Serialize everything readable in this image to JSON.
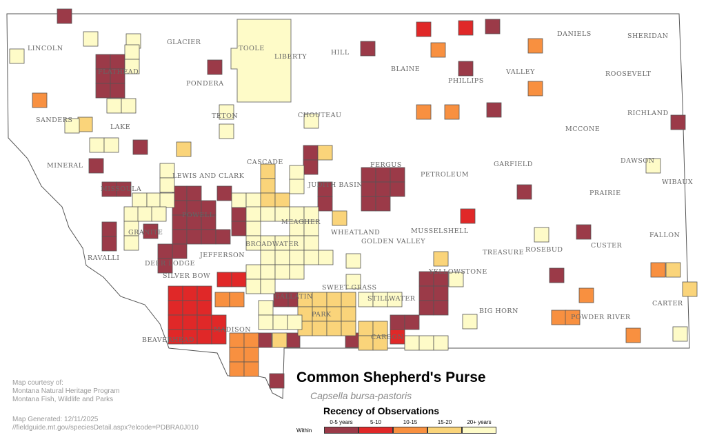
{
  "title": "Common Shepherd's Purse",
  "scientific_name": "Capsella bursa-pastoris",
  "legend": {
    "title": "Recency of Observations",
    "prefix": "Within",
    "categories": [
      {
        "label": "0-5 years",
        "color": "#9b3a48"
      },
      {
        "label": "5-10",
        "color": "#e02828"
      },
      {
        "label": "10-15",
        "color": "#f89040"
      },
      {
        "label": "15-20",
        "color": "#fad47a"
      },
      {
        "label": "20+ years",
        "color": "#fefbc8"
      }
    ]
  },
  "credits": {
    "line1": "Map courtesy of:",
    "line2": "Montana Natural Heritage Program",
    "line3": "Montana Fish, Wildlife and Parks",
    "generated": "Map Generated: 12/11/2025",
    "url": "//fieldguide.mt.gov/speciesDetail.aspx?elcode=PDBRA0J010"
  },
  "counties": [
    "LINCOLN",
    "FLATHEAD",
    "GLACIER",
    "TOOLE",
    "LIBERTY",
    "HILL",
    "BLAINE",
    "PHILLIPS",
    "VALLEY",
    "DANIELS",
    "SHERIDAN",
    "ROOSEVELT",
    "PONDERA",
    "TETON",
    "CHOUTEAU",
    "SANDERS",
    "LAKE",
    "RICHLAND",
    "MCCONE",
    "MINERAL",
    "LEWIS AND CLARK",
    "CASCADE",
    "FERGUS",
    "PETROLEUM",
    "GARFIELD",
    "DAWSON",
    "WIBAUX",
    "JUDITH BASIN",
    "MISSOULA",
    "PRAIRIE",
    "POWELL",
    "MEAGHER",
    "WHEATLAND",
    "MUSSELSHELL",
    "GRANITE",
    "GOLDEN VALLEY",
    "BROADWATER",
    "RAVALLI",
    "DEER LODGE",
    "JEFFERSON",
    "TREASURE",
    "ROSEBUD",
    "CUSTER",
    "FALLON",
    "YELLOWSTONE",
    "SILVER BOW",
    "SWEET GRASS",
    "STILLWATER",
    "GALLATIN",
    "BIG HORN",
    "CARTER",
    "POWDER RIVER",
    "PARK",
    "MADISON",
    "CARBON",
    "BEAVERHEAD"
  ]
}
